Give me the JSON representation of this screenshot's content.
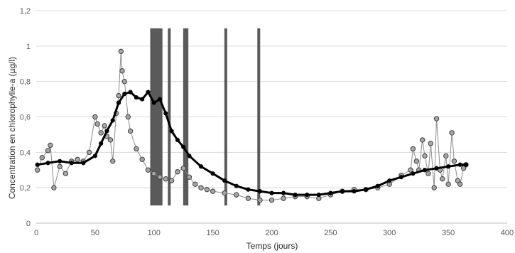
{
  "chart_data": {
    "type": "scatter",
    "title": "",
    "xlabel": "Temps (jours)",
    "ylabel": "Concentration en chlorophylle-a (µg/l)",
    "xlim": [
      0,
      400
    ],
    "ylim": [
      0,
      1.2
    ],
    "x_ticks": [
      "0",
      "50",
      "100",
      "150",
      "200",
      "250",
      "300",
      "350",
      "400"
    ],
    "y_ticks": [
      "0",
      "0,2",
      "0,4",
      "0,6",
      "0,8",
      "1",
      "1,2"
    ],
    "grid": "horizontal",
    "legend": "none",
    "event_bars": {
      "color": "#5a5a5a",
      "x": [
        98,
        100,
        102,
        104,
        106,
        113,
        126,
        128,
        161,
        189
      ],
      "y_range": [
        0.1,
        1.1
      ]
    },
    "series": [
      {
        "style": "line-with-black-dots",
        "color": "#000000",
        "x": [
          1,
          10,
          20,
          30,
          40,
          50,
          55,
          60,
          65,
          70,
          75,
          80,
          85,
          90,
          95,
          100,
          105,
          110,
          115,
          120,
          125,
          130,
          140,
          150,
          160,
          170,
          180,
          190,
          200,
          210,
          220,
          230,
          240,
          250,
          260,
          270,
          280,
          290,
          300,
          310,
          320,
          330,
          340,
          350,
          360,
          365
        ],
        "y": [
          0.33,
          0.34,
          0.35,
          0.34,
          0.34,
          0.38,
          0.45,
          0.52,
          0.58,
          0.68,
          0.73,
          0.74,
          0.71,
          0.7,
          0.74,
          0.68,
          0.7,
          0.62,
          0.52,
          0.47,
          0.43,
          0.38,
          0.32,
          0.28,
          0.24,
          0.21,
          0.19,
          0.18,
          0.17,
          0.17,
          0.16,
          0.16,
          0.16,
          0.17,
          0.18,
          0.18,
          0.19,
          0.21,
          0.24,
          0.26,
          0.28,
          0.3,
          0.31,
          0.32,
          0.33,
          0.33
        ]
      },
      {
        "style": "line-with-gray-markers",
        "color": "#999999",
        "x": [
          1,
          5,
          10,
          12,
          15,
          20,
          25,
          30,
          35,
          40,
          45,
          50,
          52,
          55,
          58,
          60,
          63,
          65,
          68,
          70,
          72,
          73,
          75,
          78,
          80,
          85,
          90,
          95,
          100,
          105,
          110,
          115,
          120,
          125,
          130,
          135,
          140,
          145,
          150,
          160,
          170,
          180,
          190,
          200,
          210,
          220,
          230,
          240,
          250,
          260,
          270,
          280,
          290,
          300,
          310,
          318,
          320,
          323,
          325,
          328,
          330,
          333,
          335,
          338,
          340,
          343,
          345,
          348,
          350,
          353,
          355,
          358,
          360,
          363,
          365
        ],
        "y": [
          0.3,
          0.37,
          0.41,
          0.44,
          0.2,
          0.32,
          0.28,
          0.35,
          0.36,
          0.35,
          0.4,
          0.6,
          0.56,
          0.51,
          0.55,
          0.49,
          0.47,
          0.35,
          0.62,
          0.72,
          0.97,
          0.86,
          0.8,
          0.6,
          0.52,
          0.42,
          0.36,
          0.3,
          0.28,
          0.26,
          0.25,
          0.24,
          0.29,
          0.31,
          0.26,
          0.22,
          0.2,
          0.19,
          0.18,
          0.17,
          0.16,
          0.14,
          0.13,
          0.13,
          0.14,
          0.15,
          0.15,
          0.14,
          0.16,
          0.18,
          0.19,
          0.19,
          0.2,
          0.22,
          0.27,
          0.3,
          0.42,
          0.35,
          0.3,
          0.47,
          0.38,
          0.28,
          0.45,
          0.2,
          0.59,
          0.3,
          0.25,
          0.38,
          0.22,
          0.51,
          0.35,
          0.24,
          0.22,
          0.31,
          0.33
        ]
      }
    ]
  }
}
